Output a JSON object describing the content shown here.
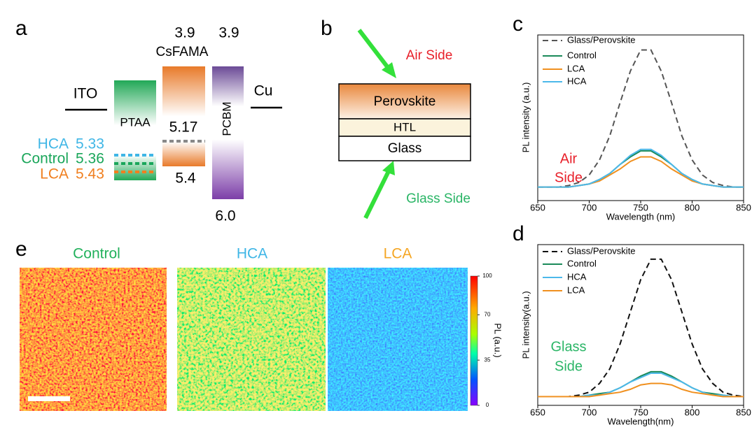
{
  "panel_a": {
    "label": "a",
    "ito": "ITO",
    "ptaa": "PTAA",
    "csfama": "CsFAMA",
    "csfama_lumo": "3.9",
    "perovskite_level": "5.17",
    "csfama_homo": "5.4",
    "pcbm": "PCBM",
    "pcbm_lumo": "3.9",
    "pcbm_homo": "6.0",
    "cu": "Cu",
    "htl_levels": [
      {
        "name": "HCA",
        "value": "5.33",
        "color": "#3fb6e6"
      },
      {
        "name": "Control",
        "value": "5.36",
        "color": "#1aa65a"
      },
      {
        "name": "LCA",
        "value": "5.43",
        "color": "#f07f1f"
      }
    ]
  },
  "panel_b": {
    "label": "b",
    "air_side": "Air Side",
    "glass_side": "Glass Side",
    "layers": [
      "Perovskite",
      "HTL",
      "Glass"
    ]
  },
  "panel_e": {
    "label": "e",
    "maps": [
      {
        "name": "Control",
        "color": "#22b15c"
      },
      {
        "name": "HCA",
        "color": "#3fb6e6"
      },
      {
        "name": "LCA",
        "color": "#f5a623"
      }
    ],
    "colorbar": {
      "label": "PL (a.u.)",
      "lim": [
        0,
        100
      ],
      "ticks": [
        0,
        35,
        70,
        100
      ]
    }
  },
  "chart_data": [
    {
      "type": "line",
      "panel_label": "c",
      "xlabel": "Wavelength (nm)",
      "ylabel": "PL intensity (a.u.)",
      "annotation": [
        "Air",
        "Side"
      ],
      "annotation_color": "#e8202a",
      "x": [
        650,
        660,
        670,
        680,
        690,
        700,
        710,
        720,
        730,
        740,
        750,
        760,
        770,
        780,
        790,
        800,
        810,
        820,
        830,
        840,
        850
      ],
      "xlim": [
        650,
        850
      ],
      "xticks": [
        650,
        700,
        750,
        800,
        850
      ],
      "ylim": [
        0,
        1.1
      ],
      "series": [
        {
          "name": "Glass/Perovskite",
          "color": "#555555",
          "dashed": true,
          "values": [
            0.09,
            0.09,
            0.09,
            0.1,
            0.12,
            0.17,
            0.27,
            0.43,
            0.65,
            0.86,
            1.0,
            1.0,
            0.86,
            0.65,
            0.43,
            0.27,
            0.17,
            0.12,
            0.1,
            0.09,
            0.09
          ]
        },
        {
          "name": "Control",
          "color": "#1a8a5a",
          "dashed": false,
          "values": [
            0.09,
            0.09,
            0.09,
            0.09,
            0.1,
            0.11,
            0.14,
            0.18,
            0.24,
            0.29,
            0.33,
            0.33,
            0.29,
            0.24,
            0.18,
            0.14,
            0.11,
            0.1,
            0.09,
            0.09,
            0.09
          ]
        },
        {
          "name": "LCA",
          "color": "#f0901f",
          "dashed": false,
          "values": [
            0.09,
            0.09,
            0.09,
            0.09,
            0.1,
            0.11,
            0.13,
            0.17,
            0.21,
            0.26,
            0.29,
            0.29,
            0.26,
            0.21,
            0.17,
            0.13,
            0.11,
            0.1,
            0.09,
            0.09,
            0.09
          ]
        },
        {
          "name": "HCA",
          "color": "#4cb8ea",
          "dashed": false,
          "values": [
            0.09,
            0.09,
            0.09,
            0.09,
            0.1,
            0.11,
            0.14,
            0.18,
            0.24,
            0.3,
            0.34,
            0.34,
            0.3,
            0.24,
            0.18,
            0.14,
            0.11,
            0.1,
            0.09,
            0.09,
            0.09
          ]
        }
      ]
    },
    {
      "type": "line",
      "panel_label": "d",
      "xlabel": "Wavelength(nm)",
      "ylabel": "PL intensity(a.u.)",
      "annotation": [
        "Glass",
        "Side"
      ],
      "annotation_color": "#2ab566",
      "x": [
        650,
        660,
        670,
        680,
        690,
        700,
        710,
        720,
        730,
        740,
        750,
        760,
        770,
        780,
        790,
        800,
        810,
        820,
        830,
        840,
        850
      ],
      "xlim": [
        650,
        850
      ],
      "xticks": [
        650,
        700,
        750,
        800,
        850
      ],
      "ylim": [
        0,
        1.1
      ],
      "series": [
        {
          "name": "Glass/Perovskite",
          "color": "#111111",
          "dashed": true,
          "values": [
            0.06,
            0.06,
            0.06,
            0.06,
            0.07,
            0.09,
            0.15,
            0.25,
            0.42,
            0.64,
            0.86,
            1.0,
            1.0,
            0.86,
            0.64,
            0.42,
            0.25,
            0.15,
            0.09,
            0.07,
            0.06
          ]
        },
        {
          "name": "Control",
          "color": "#1a8a5a",
          "dashed": false,
          "values": [
            0.06,
            0.06,
            0.06,
            0.06,
            0.06,
            0.07,
            0.08,
            0.09,
            0.12,
            0.16,
            0.2,
            0.23,
            0.23,
            0.2,
            0.16,
            0.12,
            0.09,
            0.08,
            0.07,
            0.06,
            0.06
          ]
        },
        {
          "name": "HCA",
          "color": "#4cb8ea",
          "dashed": false,
          "values": [
            0.06,
            0.06,
            0.06,
            0.06,
            0.06,
            0.07,
            0.07,
            0.09,
            0.12,
            0.16,
            0.19,
            0.22,
            0.22,
            0.19,
            0.16,
            0.12,
            0.09,
            0.07,
            0.07,
            0.06,
            0.06
          ]
        },
        {
          "name": "LCA",
          "color": "#f0901f",
          "dashed": false,
          "values": [
            0.06,
            0.06,
            0.06,
            0.06,
            0.06,
            0.06,
            0.07,
            0.08,
            0.09,
            0.11,
            0.14,
            0.15,
            0.15,
            0.14,
            0.11,
            0.09,
            0.08,
            0.07,
            0.06,
            0.06,
            0.06
          ]
        }
      ]
    }
  ]
}
